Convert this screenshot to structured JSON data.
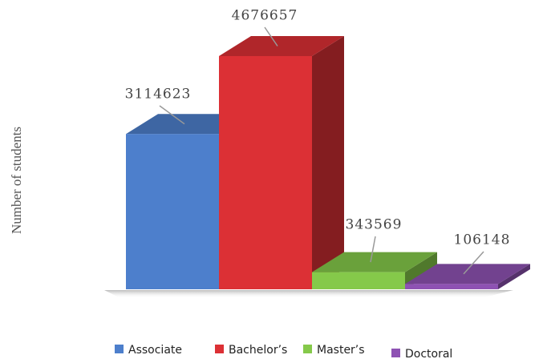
{
  "chart_data": {
    "type": "bar3d",
    "y_label": "Number of students",
    "categories": [
      "Associate",
      "Bachelor’s",
      "Master’s",
      "Doctoral"
    ],
    "values": [
      3114623,
      4676657,
      343569,
      106148
    ],
    "colors": [
      "#4d7fcc",
      "#dc3035",
      "#85c94a",
      "#8e52b3"
    ],
    "legend": "bottom"
  }
}
